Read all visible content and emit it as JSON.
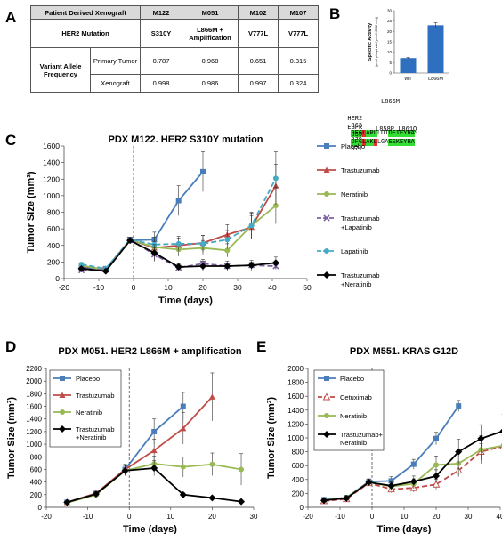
{
  "panels": {
    "a": "A",
    "b": "B",
    "c": "C",
    "d": "D",
    "e": "E"
  },
  "table": {
    "header_label": "Patient Derived Xenograft",
    "models": [
      "M122",
      "M051",
      "M102",
      "M107"
    ],
    "mutation_label": "HER2 Mutation",
    "mutations": [
      "S310Y",
      "L866M + Amplification",
      "V777L",
      "V777L"
    ],
    "vaf_label": "Variant Allele Frequency",
    "rows": [
      {
        "label": "Primary Tumor",
        "values": [
          "0.787",
          "0.968",
          "0.651",
          "0.315"
        ]
      },
      {
        "label": "Xenograft",
        "values": [
          "0.998",
          "0.986",
          "0.997",
          "0.324"
        ]
      }
    ]
  },
  "alignment": {
    "top_label": "L866M",
    "her2_name": "HER2",
    "her2_start": "863",
    "her2_seq": "DFGLARLLDIDETEYHA",
    "her2_end": "879",
    "egfr_name": "EGFR",
    "egfr_start": "855",
    "egfr_seq": "DFGLAKLLGAEEKEYHA",
    "egfr_end": "871",
    "bottom_label_1": "L858R",
    "bottom_label_2": "L861Q"
  },
  "colors": {
    "placebo": "#4a7ebb",
    "trastuzumab": "#be4b48",
    "neratinib": "#98b954",
    "tras_lap": "#7d60a0",
    "lapatinib": "#46aac5",
    "combo": "#000000",
    "cetuximab": "#be4b48",
    "bar": "#2f6fbf",
    "highlight": "#33dd33",
    "mut_red": "#e03030"
  },
  "chart_data": [
    {
      "id": "B",
      "type": "bar",
      "categories": [
        "WT",
        "L866M"
      ],
      "values": [
        7.2,
        23
      ],
      "errors": [
        0.3,
        1.2
      ],
      "ylabel": "Specific Activity",
      "ylabel2": "(pmol phosphate/(pmol HER2 min))",
      "ylim": [
        0,
        30
      ],
      "yticks": [
        0,
        5,
        10,
        15,
        20,
        25,
        30
      ]
    },
    {
      "id": "C",
      "type": "line",
      "title": "PDX M122. HER2 S310Y mutation",
      "xlabel": "Time (days)",
      "ylabel": "Tumor Size (mm³)",
      "xlim": [
        -20,
        50
      ],
      "ylim": [
        0,
        1600
      ],
      "xticks": [
        -20,
        -10,
        0,
        10,
        20,
        30,
        40,
        50
      ],
      "yticks": [
        0,
        200,
        400,
        600,
        800,
        1000,
        1200,
        1400,
        1600
      ],
      "legend": "right",
      "series": [
        {
          "name": "Placebo",
          "color": "placebo",
          "marker": "square",
          "dash": false,
          "x": [
            -15,
            -8,
            -1,
            6,
            13,
            20
          ],
          "y": [
            130,
            120,
            460,
            470,
            940,
            1290
          ],
          "err": [
            20,
            20,
            30,
            90,
            180,
            240
          ]
        },
        {
          "name": "Trastuzumab",
          "color": "trastuzumab",
          "marker": "triangle",
          "dash": false,
          "x": [
            -15,
            -8,
            -1,
            6,
            13,
            20,
            27,
            34,
            41
          ],
          "y": [
            150,
            110,
            470,
            370,
            400,
            430,
            530,
            620,
            1120
          ],
          "err": [
            25,
            20,
            30,
            60,
            90,
            90,
            120,
            140,
            260
          ]
        },
        {
          "name": "Neratinib",
          "color": "neratinib",
          "marker": "circle",
          "dash": false,
          "x": [
            -15,
            -8,
            -1,
            6,
            13,
            20,
            27,
            34,
            41
          ],
          "y": [
            160,
            100,
            470,
            380,
            350,
            370,
            340,
            640,
            880
          ],
          "err": [
            25,
            20,
            30,
            70,
            80,
            90,
            80,
            160,
            220
          ]
        },
        {
          "name": "Trastuzumab\n+Lapatinib",
          "color": "tras_lap",
          "marker": "cross",
          "dash": true,
          "x": [
            -15,
            -8,
            -1,
            6,
            13,
            20,
            27,
            34,
            41
          ],
          "y": [
            100,
            110,
            470,
            290,
            130,
            180,
            150,
            160,
            150
          ],
          "err": [
            20,
            20,
            30,
            80,
            40,
            50,
            40,
            40,
            40
          ]
        },
        {
          "name": "Lapatinib",
          "color": "lapatinib",
          "marker": "circle",
          "dash": true,
          "x": [
            -15,
            -8,
            -1,
            6,
            13,
            20,
            27,
            34,
            41
          ],
          "y": [
            170,
            120,
            470,
            410,
            420,
            420,
            470,
            640,
            1210
          ],
          "err": [
            25,
            20,
            30,
            90,
            90,
            100,
            110,
            150,
            320
          ]
        },
        {
          "name": "Trastuzumab\n+Neratinib",
          "color": "combo",
          "marker": "diamond",
          "dash": false,
          "x": [
            -15,
            -8,
            -1,
            6,
            13,
            20,
            27,
            34,
            41
          ],
          "y": [
            120,
            90,
            460,
            310,
            140,
            150,
            150,
            160,
            190
          ],
          "err": [
            20,
            20,
            30,
            100,
            40,
            60,
            60,
            60,
            70
          ]
        }
      ]
    },
    {
      "id": "D",
      "type": "line",
      "title": "PDX M051. HER2 L866M + amplification",
      "xlabel": "Time (days)",
      "ylabel": "Tumor Size (mm³)",
      "xlim": [
        -20,
        30
      ],
      "ylim": [
        0,
        2200
      ],
      "xticks": [
        -20,
        -10,
        0,
        10,
        20,
        30
      ],
      "yticks": [
        0,
        200,
        400,
        600,
        800,
        1000,
        1200,
        1400,
        1600,
        1800,
        2000,
        2200
      ],
      "legend": "top-left",
      "series": [
        {
          "name": "Placebo",
          "color": "placebo",
          "marker": "square",
          "dash": false,
          "x": [
            -15,
            -8,
            -1,
            6,
            13
          ],
          "y": [
            80,
            220,
            600,
            1200,
            1600
          ],
          "err": [
            20,
            30,
            80,
            200,
            220
          ]
        },
        {
          "name": "Trastuzumab",
          "color": "trastuzumab",
          "marker": "triangle",
          "dash": false,
          "x": [
            -15,
            -8,
            -1,
            6,
            13,
            20
          ],
          "y": [
            80,
            220,
            600,
            900,
            1250,
            1750
          ],
          "err": [
            20,
            30,
            80,
            180,
            250,
            380
          ]
        },
        {
          "name": "Neratinib",
          "color": "neratinib",
          "marker": "circle",
          "dash": false,
          "x": [
            -15,
            -8,
            -1,
            6,
            13,
            20,
            27
          ],
          "y": [
            70,
            200,
            580,
            690,
            640,
            680,
            600
          ],
          "err": [
            20,
            30,
            80,
            120,
            160,
            180,
            250
          ]
        },
        {
          "name": "Trastuzumab\n+Neratinib",
          "color": "combo",
          "marker": "diamond",
          "dash": false,
          "x": [
            -15,
            -8,
            -1,
            6,
            13,
            20,
            27
          ],
          "y": [
            80,
            210,
            580,
            620,
            200,
            150,
            90
          ],
          "err": [
            20,
            30,
            80,
            120,
            30,
            20,
            10
          ]
        }
      ]
    },
    {
      "id": "E",
      "type": "line",
      "title": "PDX M551.  KRAS G12D",
      "xlabel": "Time (days)",
      "ylabel": "Tumor Size (mm³)",
      "xlim": [
        -20,
        40
      ],
      "ylim": [
        0,
        2000
      ],
      "xticks": [
        -20,
        -10,
        0,
        10,
        20,
        30,
        40
      ],
      "yticks": [
        0,
        200,
        400,
        600,
        800,
        1000,
        1200,
        1400,
        1600,
        1800,
        2000
      ],
      "legend": "top-left",
      "series": [
        {
          "name": "Placebo",
          "color": "placebo",
          "marker": "square",
          "dash": false,
          "x": [
            -15,
            -8,
            -1,
            6,
            13,
            20,
            27
          ],
          "y": [
            110,
            140,
            370,
            380,
            620,
            990,
            1460
          ],
          "err": [
            30,
            30,
            40,
            60,
            70,
            90,
            80
          ]
        },
        {
          "name": "Cetuximab",
          "color": "cetuximab",
          "marker": "open-triangle",
          "dash": true,
          "x": [
            -15,
            -8,
            -1,
            6,
            13,
            20,
            27,
            34,
            41
          ],
          "y": [
            90,
            120,
            350,
            260,
            280,
            330,
            530,
            800,
            880
          ],
          "err": [
            20,
            30,
            40,
            50,
            60,
            70,
            90,
            120,
            160
          ]
        },
        {
          "name": "Neratinib",
          "color": "neratinib",
          "marker": "circle",
          "dash": false,
          "x": [
            -15,
            -8,
            -1,
            6,
            13,
            20,
            27,
            34,
            41
          ],
          "y": [
            100,
            140,
            360,
            300,
            340,
            610,
            630,
            830,
            890
          ],
          "err": [
            20,
            30,
            40,
            60,
            70,
            130,
            180,
            200,
            200
          ]
        },
        {
          "name": "Trastuzumab+\nNeratinib",
          "color": "combo",
          "marker": "diamond",
          "dash": false,
          "x": [
            -15,
            -8,
            -1,
            6,
            13,
            20,
            27,
            34,
            41
          ],
          "y": [
            100,
            130,
            360,
            310,
            370,
            450,
            800,
            990,
            1100
          ],
          "err": [
            20,
            30,
            40,
            60,
            80,
            90,
            180,
            200,
            240
          ]
        }
      ]
    }
  ]
}
